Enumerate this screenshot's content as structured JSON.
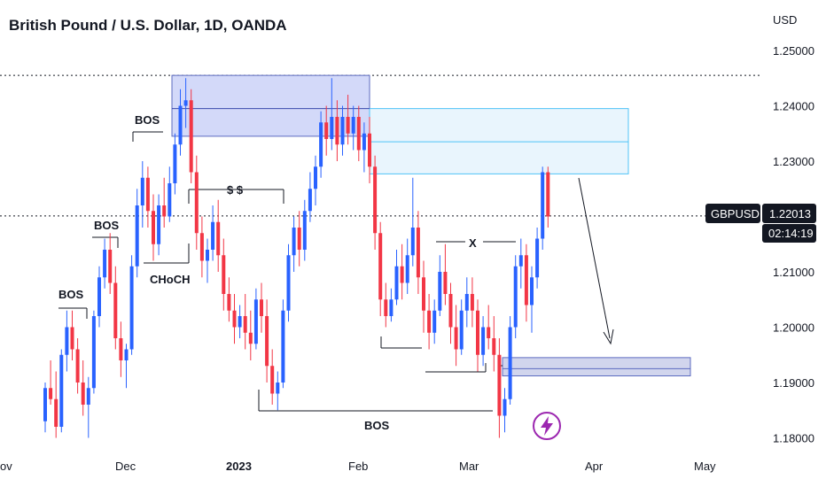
{
  "header": {
    "title": "British Pound / U.S. Dollar, 1D, OANDA"
  },
  "price_axis": {
    "currency": "USD",
    "ticks": [
      1.25,
      1.24,
      1.23,
      1.21,
      1.2,
      1.19,
      1.18
    ],
    "tick_labels": [
      "1.25000",
      "1.24000",
      "1.23000",
      "1.21000",
      "1.20000",
      "1.19000",
      "1.18000"
    ]
  },
  "time_axis": {
    "labels": [
      "ov",
      "Dec",
      "2023",
      "Feb",
      "Mar",
      "Apr",
      "May"
    ]
  },
  "symbol_badge": {
    "symbol": "GBPUSD",
    "price": "1.22013",
    "countdown": "02:14:19"
  },
  "annotations": {
    "bos": "BOS",
    "choch": "CHoCH",
    "liquidity": "$ $",
    "x_mark": "X"
  },
  "icons": {
    "flash": "lightning-icon"
  },
  "colors": {
    "bull": "#2962ff",
    "bear": "#f23645",
    "supply_zone": "#e3f2fd",
    "demand_zone": "#c5cae9",
    "badge_bg": "#131722",
    "flash": "#9c27b0"
  },
  "chart_data": {
    "type": "candlestick",
    "symbol": "GBPUSD",
    "interval": "1D",
    "ylim": [
      1.177,
      1.257
    ],
    "last_price": 1.22013,
    "candles_ohlc": [
      [
        1.183,
        1.19,
        1.181,
        1.189
      ],
      [
        1.189,
        1.194,
        1.186,
        1.187
      ],
      [
        1.187,
        1.192,
        1.18,
        1.182
      ],
      [
        1.182,
        1.196,
        1.181,
        1.195
      ],
      [
        1.195,
        1.203,
        1.192,
        1.2
      ],
      [
        1.2,
        1.203,
        1.194,
        1.196
      ],
      [
        1.196,
        1.198,
        1.188,
        1.19
      ],
      [
        1.19,
        1.194,
        1.184,
        1.186
      ],
      [
        1.186,
        1.191,
        1.18,
        1.189
      ],
      [
        1.189,
        1.203,
        1.188,
        1.202
      ],
      [
        1.202,
        1.211,
        1.2,
        1.209
      ],
      [
        1.209,
        1.216,
        1.207,
        1.214
      ],
      [
        1.214,
        1.217,
        1.206,
        1.208
      ],
      [
        1.208,
        1.211,
        1.196,
        1.198
      ],
      [
        1.198,
        1.201,
        1.191,
        1.194
      ],
      [
        1.194,
        1.197,
        1.189,
        1.196
      ],
      [
        1.196,
        1.213,
        1.195,
        1.211
      ],
      [
        1.211,
        1.225,
        1.209,
        1.222
      ],
      [
        1.222,
        1.23,
        1.218,
        1.227
      ],
      [
        1.227,
        1.229,
        1.218,
        1.221
      ],
      [
        1.221,
        1.224,
        1.212,
        1.215
      ],
      [
        1.215,
        1.224,
        1.213,
        1.222
      ],
      [
        1.222,
        1.227,
        1.218,
        1.22
      ],
      [
        1.22,
        1.229,
        1.219,
        1.226
      ],
      [
        1.226,
        1.235,
        1.224,
        1.233
      ],
      [
        1.233,
        1.243,
        1.231,
        1.24
      ],
      [
        1.24,
        1.245,
        1.236,
        1.241
      ],
      [
        1.241,
        1.243,
        1.226,
        1.228
      ],
      [
        1.228,
        1.231,
        1.214,
        1.217
      ],
      [
        1.217,
        1.22,
        1.209,
        1.212
      ],
      [
        1.212,
        1.216,
        1.208,
        1.214
      ],
      [
        1.214,
        1.222,
        1.212,
        1.219
      ],
      [
        1.219,
        1.223,
        1.21,
        1.213
      ],
      [
        1.213,
        1.216,
        1.203,
        1.206
      ],
      [
        1.206,
        1.209,
        1.201,
        1.203
      ],
      [
        1.203,
        1.206,
        1.197,
        1.2
      ],
      [
        1.2,
        1.204,
        1.198,
        1.202
      ],
      [
        1.202,
        1.206,
        1.196,
        1.199
      ],
      [
        1.199,
        1.203,
        1.194,
        1.197
      ],
      [
        1.197,
        1.207,
        1.196,
        1.205
      ],
      [
        1.205,
        1.208,
        1.199,
        1.202
      ],
      [
        1.202,
        1.205,
        1.19,
        1.193
      ],
      [
        1.193,
        1.196,
        1.186,
        1.188
      ],
      [
        1.188,
        1.192,
        1.185,
        1.19
      ],
      [
        1.19,
        1.205,
        1.189,
        1.203
      ],
      [
        1.203,
        1.215,
        1.201,
        1.213
      ],
      [
        1.213,
        1.22,
        1.21,
        1.218
      ],
      [
        1.218,
        1.221,
        1.211,
        1.214
      ],
      [
        1.214,
        1.223,
        1.212,
        1.221
      ],
      [
        1.221,
        1.228,
        1.219,
        1.225
      ],
      [
        1.225,
        1.231,
        1.222,
        1.229
      ],
      [
        1.229,
        1.239,
        1.227,
        1.237
      ],
      [
        1.237,
        1.24,
        1.231,
        1.234
      ],
      [
        1.234,
        1.245,
        1.232,
        1.238
      ],
      [
        1.238,
        1.241,
        1.23,
        1.233
      ],
      [
        1.233,
        1.24,
        1.231,
        1.238
      ],
      [
        1.238,
        1.242,
        1.233,
        1.235
      ],
      [
        1.235,
        1.24,
        1.232,
        1.238
      ],
      [
        1.238,
        1.24,
        1.23,
        1.232
      ],
      [
        1.232,
        1.237,
        1.228,
        1.235
      ],
      [
        1.235,
        1.238,
        1.226,
        1.229
      ],
      [
        1.229,
        1.231,
        1.214,
        1.217
      ],
      [
        1.217,
        1.219,
        1.202,
        1.205
      ],
      [
        1.205,
        1.208,
        1.2,
        1.202
      ],
      [
        1.202,
        1.207,
        1.201,
        1.205
      ],
      [
        1.205,
        1.214,
        1.204,
        1.211
      ],
      [
        1.211,
        1.215,
        1.205,
        1.208
      ],
      [
        1.208,
        1.216,
        1.206,
        1.213
      ],
      [
        1.213,
        1.227,
        1.211,
        1.218
      ],
      [
        1.218,
        1.221,
        1.206,
        1.209
      ],
      [
        1.209,
        1.212,
        1.199,
        1.203
      ],
      [
        1.203,
        1.206,
        1.196,
        1.199
      ],
      [
        1.199,
        1.205,
        1.197,
        1.203
      ],
      [
        1.203,
        1.213,
        1.202,
        1.21
      ],
      [
        1.21,
        1.215,
        1.204,
        1.206
      ],
      [
        1.206,
        1.208,
        1.197,
        1.2
      ],
      [
        1.2,
        1.204,
        1.193,
        1.196
      ],
      [
        1.196,
        1.205,
        1.195,
        1.203
      ],
      [
        1.203,
        1.209,
        1.2,
        1.206
      ],
      [
        1.206,
        1.209,
        1.2,
        1.203
      ],
      [
        1.203,
        1.205,
        1.192,
        1.195
      ],
      [
        1.195,
        1.202,
        1.193,
        1.2
      ],
      [
        1.2,
        1.204,
        1.196,
        1.198
      ],
      [
        1.198,
        1.202,
        1.192,
        1.195
      ],
      [
        1.195,
        1.198,
        1.18,
        1.184
      ],
      [
        1.184,
        1.189,
        1.181,
        1.187
      ],
      [
        1.187,
        1.202,
        1.186,
        1.2
      ],
      [
        1.2,
        1.213,
        1.198,
        1.211
      ],
      [
        1.211,
        1.216,
        1.207,
        1.213
      ],
      [
        1.213,
        1.215,
        1.201,
        1.204
      ],
      [
        1.204,
        1.211,
        1.199,
        1.209
      ],
      [
        1.209,
        1.218,
        1.207,
        1.216
      ],
      [
        1.216,
        1.229,
        1.214,
        1.228
      ],
      [
        1.228,
        1.229,
        1.218,
        1.22
      ]
    ],
    "zones": [
      {
        "type": "supply",
        "from_price": 1.2345,
        "to_price": 1.2455
      },
      {
        "type": "supply",
        "from_price": 1.2277,
        "to_price": 1.2395,
        "mid_line": 1.2335
      },
      {
        "type": "demand",
        "from_price": 1.1912,
        "to_price": 1.1945,
        "mid_line": 1.1925
      }
    ],
    "reference_levels": [
      1.2455,
      1.2201
    ]
  }
}
